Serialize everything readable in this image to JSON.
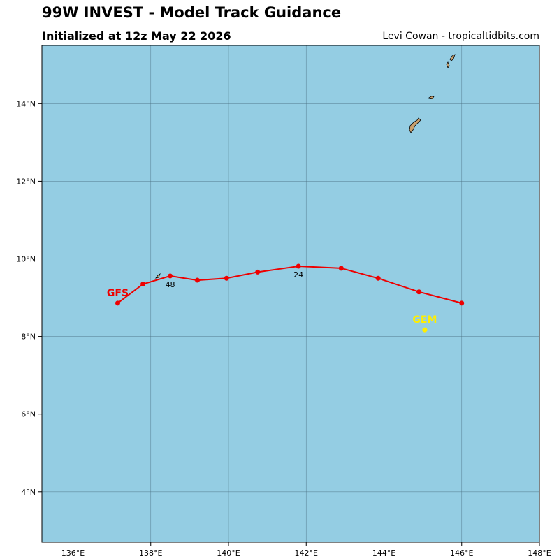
{
  "header": {
    "title": "99W INVEST - Model Track Guidance",
    "subtitle": "Initialized at 12z May 22 2026",
    "credit": "Levi Cowan - tropicaltidbits.com"
  },
  "colors": {
    "ocean": "#94cde3",
    "land": "#c8a06e",
    "grid": "#4a6f80",
    "gfs": "#ee0000",
    "gem": "#ffee00"
  },
  "map": {
    "lon_range": [
      135.2,
      148.0
    ],
    "lat_range": [
      2.7,
      15.5
    ],
    "lon_ticks": [
      136,
      138,
      140,
      142,
      144,
      146,
      148
    ],
    "lat_ticks": [
      4,
      6,
      8,
      10,
      12,
      14
    ],
    "lon_tick_labels": [
      "136°E",
      "138°E",
      "140°E",
      "142°E",
      "144°E",
      "146°E",
      "148°E"
    ],
    "lat_tick_labels": [
      "4°N",
      "6°N",
      "8°N",
      "10°N",
      "12°N",
      "14°N"
    ]
  },
  "models": [
    {
      "name": "GFS",
      "color": "#ee0000",
      "track": [
        [
          146.0,
          8.86
        ],
        [
          144.9,
          9.15
        ],
        [
          143.85,
          9.5
        ],
        [
          142.9,
          9.76
        ],
        [
          141.8,
          9.81
        ],
        [
          140.75,
          9.66
        ],
        [
          139.95,
          9.5
        ],
        [
          139.2,
          9.45
        ],
        [
          138.5,
          9.56
        ],
        [
          137.8,
          9.35
        ],
        [
          137.15,
          8.86
        ]
      ],
      "hour_labels": [
        {
          "text": "24",
          "lon": 141.8,
          "lat": 9.81
        },
        {
          "text": "48",
          "lon": 138.5,
          "lat": 9.56
        }
      ]
    },
    {
      "name": "GEM",
      "color": "#ffee00",
      "track": [
        [
          145.05,
          8.17
        ]
      ],
      "hour_labels": []
    }
  ]
}
